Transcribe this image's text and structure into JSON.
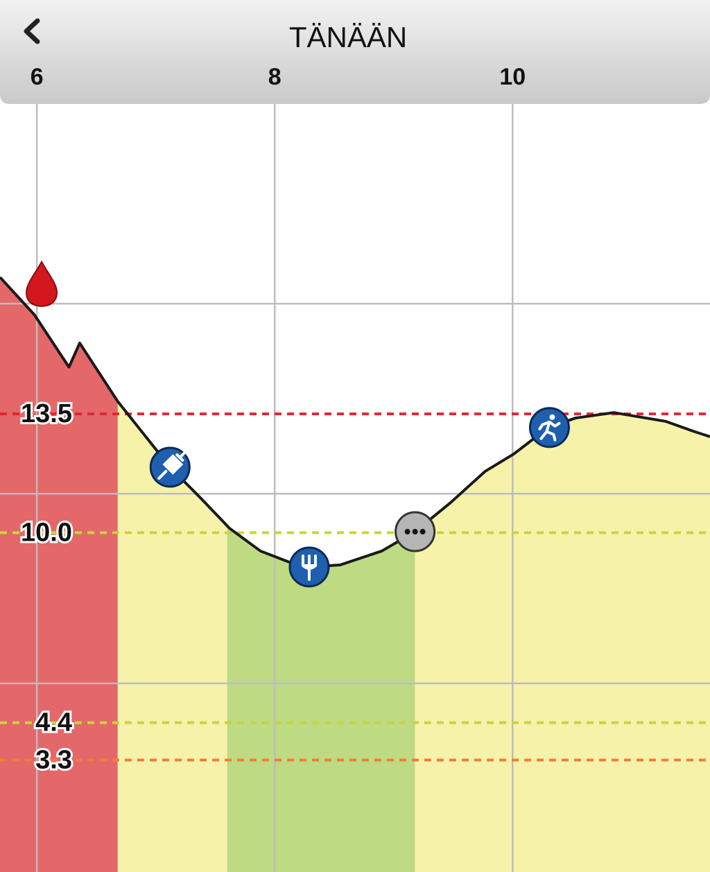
{
  "chart_data": {
    "type": "line",
    "title": "TÄNÄÄN",
    "x": [
      5.69,
      5.98,
      6.27,
      6.36,
      6.68,
      7.12,
      7.38,
      7.62,
      7.88,
      8.14,
      8.29,
      8.55,
      8.9,
      9.18,
      9.48,
      9.77,
      10.01,
      10.3,
      10.53,
      10.85,
      11.29,
      11.52,
      11.66
    ],
    "values": [
      17.53,
      16.42,
      14.88,
      15.59,
      13.87,
      11.93,
      11.01,
      10.13,
      9.46,
      9.11,
      8.99,
      9.05,
      9.46,
      10.03,
      10.89,
      11.81,
      12.32,
      13.1,
      13.38,
      13.54,
      13.28,
      12.99,
      12.83
    ],
    "color": "#1a1a1a",
    "xlim": [
      5.69,
      11.66
    ],
    "ylim": [
      0,
      25.7
    ],
    "xticks": [
      6,
      8,
      10
    ],
    "ygrid": [
      5.56,
      11.15,
      16.75
    ],
    "grid": true,
    "thresholds": [
      {
        "value": 13.5,
        "color": "#e3262f"
      },
      {
        "value": 10,
        "label": "10.0",
        "color": "#c9d43c"
      },
      {
        "value": 4.4,
        "color": "#c9d43c"
      },
      {
        "value": 3.3,
        "color": "#ef7d3a"
      }
    ],
    "zones": [
      {
        "from": 5.69,
        "to": 6.68,
        "color": "#e4676a"
      },
      {
        "from": 6.68,
        "to": 7.6,
        "color": "#f6f2aa"
      },
      {
        "from": 7.6,
        "to": 9.18,
        "color": "#bedb84"
      },
      {
        "from": 9.18,
        "to": 11.66,
        "color": "#f6f2aa"
      }
    ],
    "events": [
      {
        "x": 6.04,
        "y": 17.33,
        "icon": "drop"
      },
      {
        "x": 7.12,
        "y": 11.93,
        "icon": "syringe"
      },
      {
        "x": 8.29,
        "y": 8.99,
        "icon": "meal"
      },
      {
        "x": 9.18,
        "y": 10.03,
        "icon": "other"
      },
      {
        "x": 10.31,
        "y": 13.1,
        "icon": "exercise"
      }
    ]
  }
}
